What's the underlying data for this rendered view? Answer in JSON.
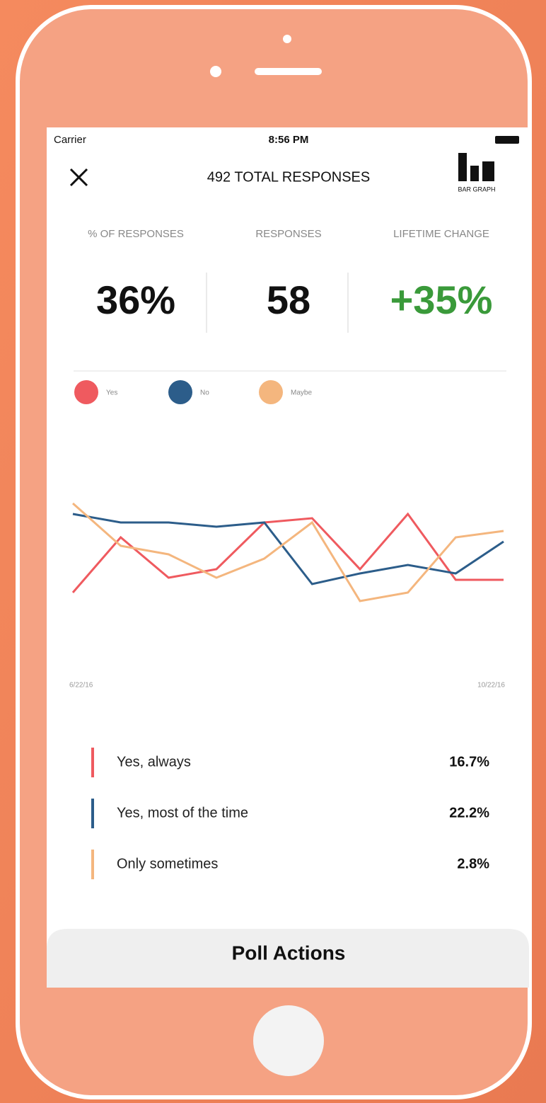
{
  "status_bar": {
    "carrier": "Carrier",
    "time": "8:56 PM"
  },
  "header": {
    "title": "492 TOTAL RESPONSES",
    "icon_label": "BAR GRAPH"
  },
  "stats": [
    {
      "label": "% OF RESPONSES",
      "value": "36%"
    },
    {
      "label": "RESPONSES",
      "value": "58"
    },
    {
      "label": "LIFETIME CHANGE",
      "value": "+35%"
    }
  ],
  "chart_data": {
    "type": "line",
    "categories": [
      "6/22/16",
      null,
      null,
      null,
      null,
      null,
      null,
      null,
      null,
      "10/22/16"
    ],
    "ylim": [
      0,
      100
    ],
    "series": [
      {
        "name": "Yes",
        "color": "#ef5a5f",
        "values": [
          21,
          47,
          28,
          32,
          54,
          56,
          32,
          58,
          27,
          27
        ]
      },
      {
        "name": "No",
        "color": "#2c5d8a",
        "values": [
          58,
          54,
          54,
          52,
          54,
          25,
          30,
          34,
          30,
          45
        ]
      },
      {
        "name": "Maybe",
        "color": "#f4b67e",
        "values": [
          63,
          43,
          39,
          28,
          37,
          54,
          17,
          21,
          47,
          50
        ]
      }
    ]
  },
  "answers": [
    {
      "label": "Yes, always",
      "percent": "16.7%",
      "color": "#ef5a5f"
    },
    {
      "label": "Yes, most of the time",
      "percent": "22.2%",
      "color": "#2c5d8a"
    },
    {
      "label": "Only sometimes",
      "percent": "2.8%",
      "color": "#f4b67e"
    }
  ],
  "footer": {
    "button": "Poll Actions"
  }
}
